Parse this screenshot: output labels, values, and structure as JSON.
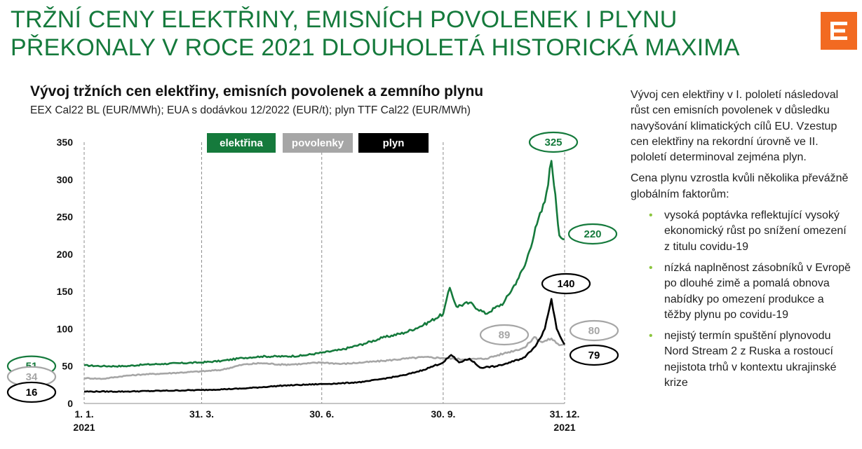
{
  "headline": {
    "line1": "TRŽNÍ CENY ELEKTŘINY, EMISNÍCH POVOLENEK I PLYNU",
    "line2": "PŘEKONALY V ROCE 2021 DLOUHOLETÁ HISTORICKÁ MAXIMA"
  },
  "brand": {
    "accent": "#f26a21",
    "logo_icon": "cez-logo-icon"
  },
  "chart_data": {
    "type": "line",
    "title": "Vývoj tržních cen elektřiny, emisních povolenek a zemního plynu",
    "subtitle": "EEX Cal22 BL (EUR/MWh); EUA s dodávkou 12/2022 (EUR/t); plyn TTF Cal22 (EUR/MWh)",
    "ylim": [
      0,
      350
    ],
    "yticks": [
      0,
      50,
      100,
      150,
      200,
      250,
      300,
      350
    ],
    "xlim": [
      "2021-01-01",
      "2021-12-31"
    ],
    "xticks": [
      {
        "date": "2021-01-01",
        "label": "1. 1.",
        "sublabel": "2021"
      },
      {
        "date": "2021-03-31",
        "label": "31. 3.",
        "sublabel": ""
      },
      {
        "date": "2021-06-30",
        "label": "30. 6.",
        "sublabel": ""
      },
      {
        "date": "2021-09-30",
        "label": "30. 9.",
        "sublabel": ""
      },
      {
        "date": "2021-12-31",
        "label": "31. 12.",
        "sublabel": "2021"
      }
    ],
    "grid": "vertical dashed lines at x ticks",
    "legend_position": "top",
    "series": [
      {
        "name": "elektřina",
        "color": "#157a3c",
        "start_label": "51",
        "end_label": "220",
        "peak_label": "325",
        "peak_date": "2021-12-21",
        "points": [
          [
            "2021-01-01",
            51
          ],
          [
            "2021-01-15",
            50
          ],
          [
            "2021-02-01",
            50
          ],
          [
            "2021-02-15",
            52
          ],
          [
            "2021-03-01",
            53
          ],
          [
            "2021-03-31",
            55
          ],
          [
            "2021-04-15",
            57
          ],
          [
            "2021-05-01",
            61
          ],
          [
            "2021-05-15",
            63
          ],
          [
            "2021-06-01",
            63
          ],
          [
            "2021-06-15",
            64
          ],
          [
            "2021-06-30",
            68
          ],
          [
            "2021-07-15",
            72
          ],
          [
            "2021-08-01",
            80
          ],
          [
            "2021-08-15",
            88
          ],
          [
            "2021-09-01",
            95
          ],
          [
            "2021-09-15",
            105
          ],
          [
            "2021-09-30",
            120
          ],
          [
            "2021-10-05",
            155
          ],
          [
            "2021-10-10",
            130
          ],
          [
            "2021-10-20",
            135
          ],
          [
            "2021-11-01",
            120
          ],
          [
            "2021-11-15",
            135
          ],
          [
            "2021-11-25",
            165
          ],
          [
            "2021-12-01",
            185
          ],
          [
            "2021-12-10",
            240
          ],
          [
            "2021-12-16",
            270
          ],
          [
            "2021-12-21",
            325
          ],
          [
            "2021-12-24",
            280
          ],
          [
            "2021-12-27",
            225
          ],
          [
            "2021-12-31",
            220
          ]
        ]
      },
      {
        "name": "povolenky",
        "color": "#a6a6a6",
        "start_label": "34",
        "end_label": "80",
        "peak_label": "89",
        "peak_date": "2021-12-08",
        "points": [
          [
            "2021-01-01",
            34
          ],
          [
            "2021-01-15",
            33
          ],
          [
            "2021-02-01",
            37
          ],
          [
            "2021-02-15",
            39
          ],
          [
            "2021-03-01",
            40
          ],
          [
            "2021-03-31",
            43
          ],
          [
            "2021-04-15",
            45
          ],
          [
            "2021-05-01",
            52
          ],
          [
            "2021-05-15",
            54
          ],
          [
            "2021-06-01",
            52
          ],
          [
            "2021-06-15",
            53
          ],
          [
            "2021-06-30",
            55
          ],
          [
            "2021-07-15",
            53
          ],
          [
            "2021-08-01",
            55
          ],
          [
            "2021-08-15",
            57
          ],
          [
            "2021-09-01",
            60
          ],
          [
            "2021-09-15",
            62
          ],
          [
            "2021-09-30",
            61
          ],
          [
            "2021-10-15",
            59
          ],
          [
            "2021-11-01",
            60
          ],
          [
            "2021-11-15",
            67
          ],
          [
            "2021-12-01",
            75
          ],
          [
            "2021-12-08",
            89
          ],
          [
            "2021-12-14",
            82
          ],
          [
            "2021-12-21",
            87
          ],
          [
            "2021-12-27",
            78
          ],
          [
            "2021-12-31",
            80
          ]
        ]
      },
      {
        "name": "plyn",
        "color": "#000000",
        "start_label": "16",
        "end_label": "79",
        "peak_label": "140",
        "peak_date": "2021-12-21",
        "points": [
          [
            "2021-01-01",
            16
          ],
          [
            "2021-02-01",
            16
          ],
          [
            "2021-03-01",
            17
          ],
          [
            "2021-03-31",
            18
          ],
          [
            "2021-05-01",
            20
          ],
          [
            "2021-06-01",
            24
          ],
          [
            "2021-06-30",
            26
          ],
          [
            "2021-07-15",
            27
          ],
          [
            "2021-08-01",
            29
          ],
          [
            "2021-08-15",
            33
          ],
          [
            "2021-09-01",
            38
          ],
          [
            "2021-09-15",
            45
          ],
          [
            "2021-09-30",
            55
          ],
          [
            "2021-10-06",
            65
          ],
          [
            "2021-10-12",
            55
          ],
          [
            "2021-10-20",
            60
          ],
          [
            "2021-10-28",
            48
          ],
          [
            "2021-11-10",
            50
          ],
          [
            "2021-11-20",
            55
          ],
          [
            "2021-12-01",
            62
          ],
          [
            "2021-12-10",
            80
          ],
          [
            "2021-12-16",
            100
          ],
          [
            "2021-12-21",
            140
          ],
          [
            "2021-12-25",
            100
          ],
          [
            "2021-12-31",
            79
          ]
        ]
      }
    ]
  },
  "sidebar": {
    "paragraph1": "Vývoj cen elektřiny v I. pololetí následoval růst cen emisních povolenek v důsledku navyšování klimatických cílů EU. Vzestup cen elektřiny na rekordní úrovně ve II. pololetí determinoval zejména plyn.",
    "paragraph2": "Cena plynu vzrostla kvůli několika převážně globálním faktorům:",
    "bullets": [
      "vysoká poptávka reflektující vysoký ekonomický růst po snížení omezení z titulu covidu-19",
      "nízká naplněnost zásobníků v Evropě po dlouhé zimě a pomalá obnova nabídky po omezení produkce a těžby plynu po covidu-19",
      "nejistý termín spuštění plynovodu Nord Stream 2 z Ruska a rostoucí nejistota trhů v kontextu ukrajinské krize"
    ]
  }
}
